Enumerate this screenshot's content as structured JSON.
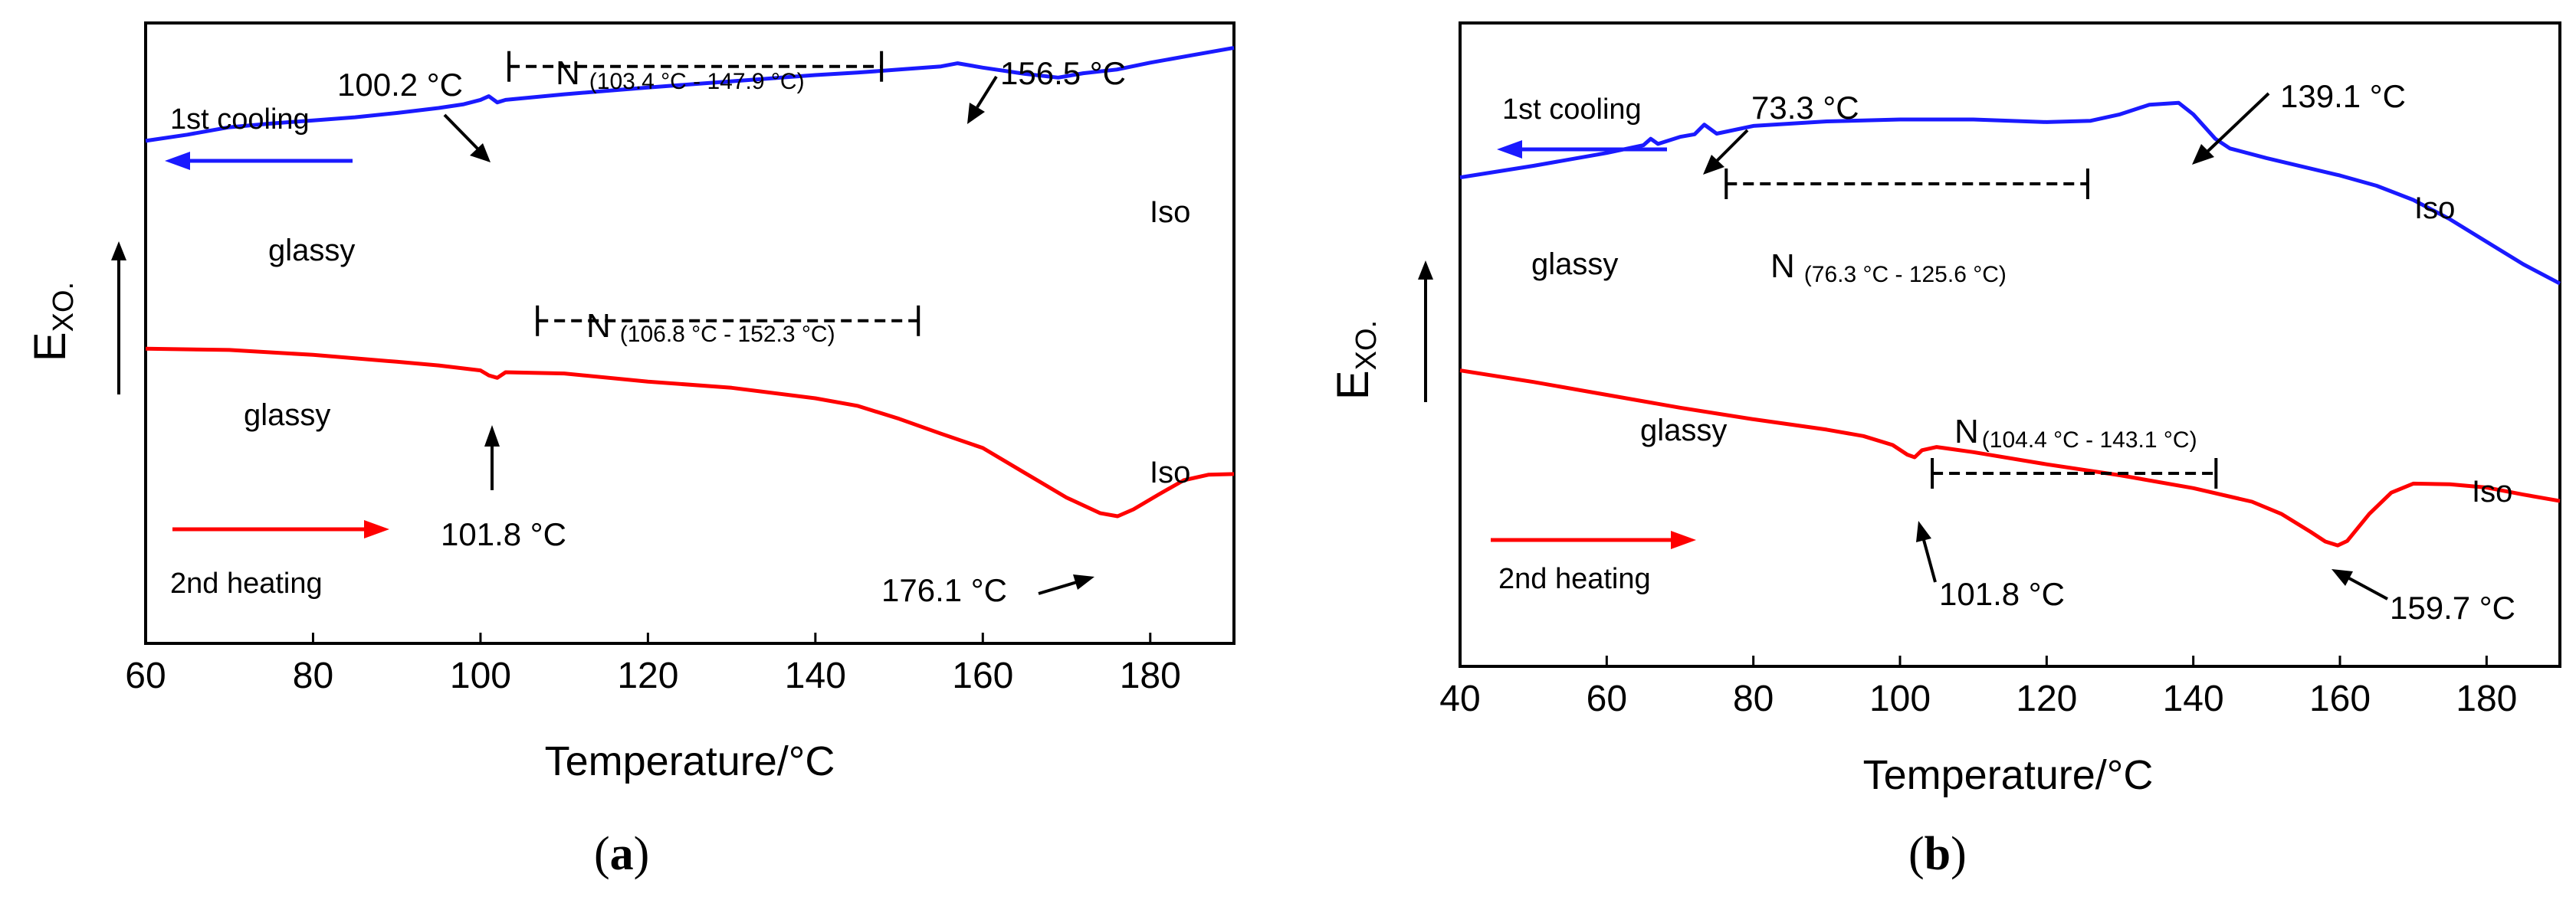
{
  "colors": {
    "cooling": "#1a1aff",
    "heating": "#ff0000",
    "axis": "#000000"
  },
  "chart_data": [
    {
      "type": "line",
      "panel_label": "a",
      "xlabel": "Temperature/°C",
      "ylabel_main": "E",
      "ylabel_sub": "XO.",
      "xlim": [
        60,
        190
      ],
      "ylim": [
        0,
        100
      ],
      "xticks": [
        60,
        80,
        100,
        120,
        140,
        160,
        180
      ],
      "series": [
        {
          "name": "1st cooling",
          "color": "#1a1aff",
          "points": [
            [
              60,
              81
            ],
            [
              65,
              82
            ],
            [
              70,
              83.2
            ],
            [
              75,
              83.8
            ],
            [
              80,
              84.3
            ],
            [
              85,
              84.8
            ],
            [
              90,
              85.5
            ],
            [
              95,
              86.3
            ],
            [
              98,
              86.9
            ],
            [
              100,
              87.6
            ],
            [
              101,
              88.2
            ],
            [
              102,
              87.2
            ],
            [
              103,
              87.6
            ],
            [
              110,
              88.5
            ],
            [
              120,
              89.6
            ],
            [
              130,
              90.6
            ],
            [
              140,
              91.6
            ],
            [
              145,
              92
            ],
            [
              150,
              92.5
            ],
            [
              155,
              93
            ],
            [
              157,
              93.5
            ],
            [
              160,
              92.8
            ],
            [
              165,
              91.8
            ],
            [
              169,
              91.2
            ],
            [
              172,
              91.9
            ],
            [
              176,
              92.5
            ],
            [
              180,
              93.6
            ],
            [
              185,
              94.8
            ],
            [
              190,
              96
            ]
          ]
        },
        {
          "name": "2nd heating",
          "color": "#ff0000",
          "points": [
            [
              60,
              47.5
            ],
            [
              70,
              47.3
            ],
            [
              80,
              46.5
            ],
            [
              90,
              45.4
            ],
            [
              95,
              44.8
            ],
            [
              100,
              44
            ],
            [
              101,
              43.2
            ],
            [
              102,
              42.8
            ],
            [
              103,
              43.7
            ],
            [
              110,
              43.5
            ],
            [
              120,
              42.2
            ],
            [
              130,
              41.2
            ],
            [
              140,
              39.5
            ],
            [
              145,
              38.3
            ],
            [
              150,
              36.2
            ],
            [
              155,
              33.8
            ],
            [
              160,
              31.5
            ],
            [
              165,
              27.5
            ],
            [
              170,
              23.5
            ],
            [
              174,
              21
            ],
            [
              176.1,
              20.5
            ],
            [
              178,
              21.6
            ],
            [
              181,
              24
            ],
            [
              184,
              26.3
            ],
            [
              187,
              27.2
            ],
            [
              190,
              27.3
            ]
          ]
        }
      ],
      "legend": [
        {
          "text": "1st cooling",
          "direction": "left",
          "color": "#1a1aff"
        },
        {
          "text": "2nd heating",
          "direction": "right",
          "color": "#ff0000"
        }
      ],
      "phase_labels": [
        "glassy",
        "Iso",
        "glassy",
        "Iso"
      ],
      "nematic_ranges": [
        {
          "label": "N",
          "range_text": "(103.4 °C - 147.9 °C)",
          "x_start": 103.4,
          "x_end": 147.9,
          "y": 93
        },
        {
          "label": "N",
          "range_text": "(106.8 °C - 152.3 °C)",
          "x_start": 106.8,
          "x_end": 152.3,
          "y": 52
        }
      ],
      "annotations": [
        {
          "text": "100.2 °C",
          "x": 100.2
        },
        {
          "text": "156.5 °C",
          "x": 156.5
        },
        {
          "text": "101.8 °C",
          "x": 101.8
        },
        {
          "text": "176.1 °C",
          "x": 176.1
        }
      ]
    },
    {
      "type": "line",
      "panel_label": "b",
      "xlabel": "Temperature/°C",
      "ylabel_main": "E",
      "ylabel_sub": "XO.",
      "xlim": [
        40,
        190
      ],
      "ylim": [
        0,
        100
      ],
      "xticks": [
        40,
        60,
        80,
        100,
        120,
        140,
        160,
        180
      ],
      "series": [
        {
          "name": "1st cooling",
          "color": "#1a1aff",
          "points": [
            [
              40,
              76
            ],
            [
              50,
              77.8
            ],
            [
              60,
              79.8
            ],
            [
              65,
              81
            ],
            [
              66,
              82
            ],
            [
              67,
              81.2
            ],
            [
              70,
              82.3
            ],
            [
              72,
              82.7
            ],
            [
              73.3,
              84.2
            ],
            [
              75,
              82.8
            ],
            [
              80,
              84
            ],
            [
              90,
              84.7
            ],
            [
              100,
              85
            ],
            [
              110,
              85
            ],
            [
              120,
              84.6
            ],
            [
              126,
              84.8
            ],
            [
              130,
              85.8
            ],
            [
              134,
              87.3
            ],
            [
              138,
              87.6
            ],
            [
              140,
              85.8
            ],
            [
              143,
              82
            ],
            [
              145,
              80.5
            ],
            [
              150,
              79
            ],
            [
              160,
              76.3
            ],
            [
              165,
              74.7
            ],
            [
              170,
              72.5
            ],
            [
              175,
              69.5
            ],
            [
              180,
              66
            ],
            [
              185,
              62.5
            ],
            [
              190,
              59.5
            ]
          ]
        },
        {
          "name": "2nd heating",
          "color": "#ff0000",
          "points": [
            [
              40,
              46
            ],
            [
              50,
              44.2
            ],
            [
              60,
              42.2
            ],
            [
              70,
              40.2
            ],
            [
              80,
              38.4
            ],
            [
              90,
              36.8
            ],
            [
              95,
              35.8
            ],
            [
              99,
              34.4
            ],
            [
              101,
              32.9
            ],
            [
              102,
              32.5
            ],
            [
              103,
              33.6
            ],
            [
              105,
              34.1
            ],
            [
              110,
              33.3
            ],
            [
              120,
              31.4
            ],
            [
              130,
              29.7
            ],
            [
              140,
              27.7
            ],
            [
              148,
              25.6
            ],
            [
              152,
              23.7
            ],
            [
              156,
              20.9
            ],
            [
              158,
              19.4
            ],
            [
              159.7,
              18.8
            ],
            [
              161,
              19.5
            ],
            [
              164,
              23.7
            ],
            [
              167,
              27
            ],
            [
              170,
              28.4
            ],
            [
              175,
              28.3
            ],
            [
              180,
              27.8
            ],
            [
              185,
              26.7
            ],
            [
              190,
              25.7
            ]
          ]
        }
      ],
      "legend": [
        {
          "text": "1st cooling",
          "direction": "left",
          "color": "#1a1aff"
        },
        {
          "text": "2nd heating",
          "direction": "right",
          "color": "#ff0000"
        }
      ],
      "phase_labels": [
        "glassy",
        "Iso",
        "glassy",
        "Iso"
      ],
      "nematic_ranges": [
        {
          "label": "N",
          "range_text": "(76.3 °C - 125.6 °C)",
          "x_start": 76.3,
          "x_end": 125.6,
          "y": 75
        },
        {
          "label": "N",
          "range_text": "(104.4 °C - 143.1 °C)",
          "x_start": 104.4,
          "x_end": 143.1,
          "y": 30
        }
      ],
      "annotations": [
        {
          "text": "73.3 °C",
          "x": 73.3
        },
        {
          "text": "139.1 °C",
          "x": 139.1
        },
        {
          "text": "101.8 °C",
          "x": 101.8
        },
        {
          "text": "159.7 °C",
          "x": 159.7
        }
      ]
    }
  ]
}
